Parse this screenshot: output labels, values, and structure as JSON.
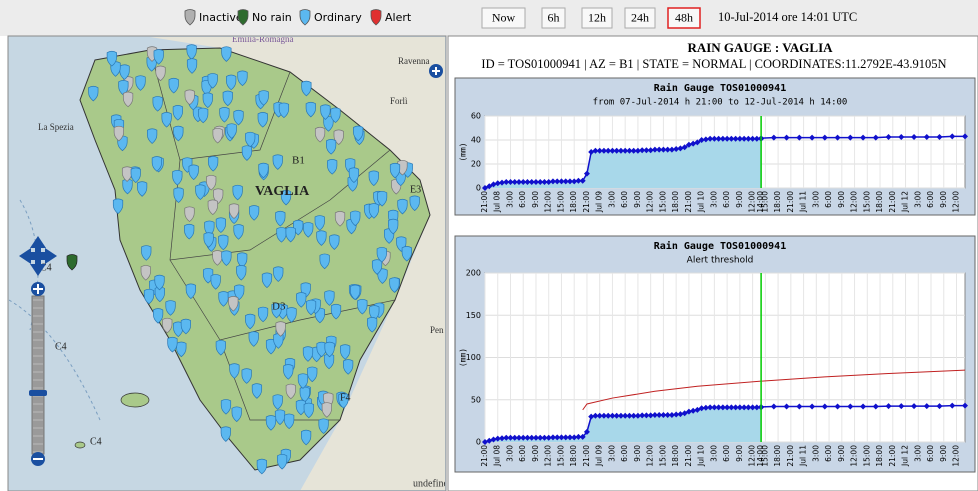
{
  "top_bar": {
    "legend": [
      "Inactive",
      "No rain",
      "Ordinary",
      "Alert"
    ],
    "legend_colors": [
      "#b0b0b0",
      "#2e6b2e",
      "#5bb8f0",
      "#e03030"
    ],
    "buttons": [
      "Now",
      "6h",
      "12h",
      "24h",
      "48h"
    ],
    "selected_button": 4,
    "timestamp": "10-Jul-2014 ore 14:01 UTC"
  },
  "map": {
    "labels": [
      "Emilia-Romagna",
      "Ravenna",
      "Forlì",
      "La Spezia",
      "B1",
      "VAGLIA",
      "E3",
      "D3",
      "Pen",
      "C4",
      "C4",
      "F4",
      "C4",
      "undefined"
    ]
  },
  "station": {
    "title": "RAIN GAUGE : VAGLIA",
    "info": "ID = TOS01000941 | AZ = B1 | STATE = NORMAL | COORDINATES:11.2792E-43.9105N"
  },
  "chart_data": [
    {
      "type": "line",
      "title": "Rain Gauge TOS01000941",
      "subtitle": "from 07-Jul-2014 h 21:00   to 12-Jul-2014 h 14:00",
      "y_label": "(mm)",
      "xlim": [
        0,
        113
      ],
      "ylim": [
        0,
        60
      ],
      "yticks": [
        0,
        20,
        40,
        60
      ],
      "grid": true,
      "now_x": 65,
      "now_color": "#00cc00",
      "xticks": [
        {
          "value": 0,
          "label": "21:00"
        },
        {
          "value": 3,
          "label": "Jul 08"
        },
        {
          "value": 6,
          "label": "3:00"
        },
        {
          "value": 9,
          "label": "6:00"
        },
        {
          "value": 12,
          "label": "9:00"
        },
        {
          "value": 15,
          "label": "12:00"
        },
        {
          "value": 18,
          "label": "15:00"
        },
        {
          "value": 21,
          "label": "18:00"
        },
        {
          "value": 24,
          "label": "21:00"
        },
        {
          "value": 27,
          "label": "Jul 09"
        },
        {
          "value": 30,
          "label": "3:00"
        },
        {
          "value": 33,
          "label": "6:00"
        },
        {
          "value": 36,
          "label": "9:00"
        },
        {
          "value": 39,
          "label": "12:00"
        },
        {
          "value": 42,
          "label": "15:00"
        },
        {
          "value": 45,
          "label": "18:00"
        },
        {
          "value": 48,
          "label": "21:00"
        },
        {
          "value": 51,
          "label": "Jul 10"
        },
        {
          "value": 54,
          "label": "3:00"
        },
        {
          "value": 57,
          "label": "6:00"
        },
        {
          "value": 60,
          "label": "9:00"
        },
        {
          "value": 63,
          "label": "12:00"
        },
        {
          "value": 65,
          "label": "14:00"
        },
        {
          "value": 66,
          "label": "15:00"
        },
        {
          "value": 69,
          "label": "18:00"
        },
        {
          "value": 72,
          "label": "21:00"
        },
        {
          "value": 75,
          "label": "Jul 11"
        },
        {
          "value": 78,
          "label": "3:00"
        },
        {
          "value": 81,
          "label": "6:00"
        },
        {
          "value": 84,
          "label": "9:00"
        },
        {
          "value": 87,
          "label": "12:00"
        },
        {
          "value": 90,
          "label": "15:00"
        },
        {
          "value": 93,
          "label": "18:00"
        },
        {
          "value": 96,
          "label": "21:00"
        },
        {
          "value": 99,
          "label": "Jul 12"
        },
        {
          "value": 102,
          "label": "3:00"
        },
        {
          "value": 105,
          "label": "6:00"
        },
        {
          "value": 108,
          "label": "9:00"
        },
        {
          "value": 111,
          "label": "12:00"
        }
      ],
      "series": [
        {
          "color": "#1010cc",
          "area_color": "#a8d8ea",
          "markers": true,
          "x": [
            0,
            1,
            2,
            3,
            4,
            5,
            6,
            7,
            8,
            9,
            10,
            11,
            12,
            13,
            14,
            15,
            16,
            17,
            18,
            19,
            20,
            21,
            22,
            23,
            24,
            25,
            26,
            27,
            28,
            29,
            30,
            31,
            32,
            33,
            34,
            35,
            36,
            37,
            38,
            39,
            40,
            41,
            42,
            43,
            44,
            45,
            46,
            47,
            48,
            49,
            50,
            51,
            52,
            53,
            54,
            55,
            56,
            57,
            58,
            59,
            60,
            61,
            62,
            63,
            64,
            65
          ],
          "values": [
            0,
            1.5,
            3,
            4,
            4.5,
            5,
            5,
            5,
            5,
            5,
            5,
            5,
            5,
            5,
            5,
            5,
            5.5,
            5.5,
            5.5,
            5.5,
            5.5,
            5.5,
            6,
            6,
            12,
            30,
            31,
            31,
            31,
            31,
            31,
            31,
            31,
            31,
            31,
            31,
            31,
            31.5,
            31.5,
            31.5,
            32,
            32,
            32,
            32,
            32,
            32.5,
            33,
            34,
            36,
            37,
            38,
            40,
            40.5,
            41,
            41,
            41,
            41,
            41,
            41,
            41,
            41,
            41,
            41,
            41,
            41,
            41
          ]
        },
        {
          "color": "#1010cc",
          "markers": true,
          "x": [
            65,
            68,
            71,
            74,
            77,
            80,
            83,
            86,
            89,
            92,
            95,
            98,
            101,
            104,
            107,
            110,
            113
          ],
          "values": [
            41.5,
            42,
            42,
            42,
            42,
            42,
            42,
            42,
            42,
            42,
            42.5,
            42.5,
            42.5,
            42.5,
            42.5,
            43,
            43
          ]
        }
      ]
    },
    {
      "type": "line",
      "title": "Rain Gauge TOS01000941",
      "subtitle": "Alert threshold",
      "y_label": "(mm)",
      "xlim": [
        0,
        113
      ],
      "ylim": [
        0,
        200
      ],
      "yticks": [
        0,
        50,
        100,
        150,
        200
      ],
      "grid": true,
      "now_x": 65,
      "now_color": "#00cc00",
      "xticks": [
        {
          "value": 0,
          "label": "21:00"
        },
        {
          "value": 3,
          "label": "Jul 08"
        },
        {
          "value": 6,
          "label": "3:00"
        },
        {
          "value": 9,
          "label": "6:00"
        },
        {
          "value": 12,
          "label": "9:00"
        },
        {
          "value": 15,
          "label": "12:00"
        },
        {
          "value": 18,
          "label": "15:00"
        },
        {
          "value": 21,
          "label": "18:00"
        },
        {
          "value": 24,
          "label": "21:00"
        },
        {
          "value": 27,
          "label": "Jul 09"
        },
        {
          "value": 30,
          "label": "3:00"
        },
        {
          "value": 33,
          "label": "6:00"
        },
        {
          "value": 36,
          "label": "9:00"
        },
        {
          "value": 39,
          "label": "12:00"
        },
        {
          "value": 42,
          "label": "15:00"
        },
        {
          "value": 45,
          "label": "18:00"
        },
        {
          "value": 48,
          "label": "21:00"
        },
        {
          "value": 51,
          "label": "Jul 10"
        },
        {
          "value": 54,
          "label": "3:00"
        },
        {
          "value": 57,
          "label": "6:00"
        },
        {
          "value": 60,
          "label": "9:00"
        },
        {
          "value": 63,
          "label": "12:00"
        },
        {
          "value": 65,
          "label": "14:00"
        },
        {
          "value": 66,
          "label": "15:00"
        },
        {
          "value": 69,
          "label": "18:00"
        },
        {
          "value": 72,
          "label": "21:00"
        },
        {
          "value": 75,
          "label": "Jul 11"
        },
        {
          "value": 78,
          "label": "3:00"
        },
        {
          "value": 81,
          "label": "6:00"
        },
        {
          "value": 84,
          "label": "9:00"
        },
        {
          "value": 87,
          "label": "12:00"
        },
        {
          "value": 90,
          "label": "15:00"
        },
        {
          "value": 93,
          "label": "18:00"
        },
        {
          "value": 96,
          "label": "21:00"
        },
        {
          "value": 99,
          "label": "Jul 12"
        },
        {
          "value": 102,
          "label": "3:00"
        },
        {
          "value": 105,
          "label": "6:00"
        },
        {
          "value": 108,
          "label": "9:00"
        },
        {
          "value": 111,
          "label": "12:00"
        }
      ],
      "series": [
        {
          "color": "#1010cc",
          "area_color": "#a8d8ea",
          "markers": true,
          "x": [
            0,
            1,
            2,
            3,
            4,
            5,
            6,
            7,
            8,
            9,
            10,
            11,
            12,
            13,
            14,
            15,
            16,
            17,
            18,
            19,
            20,
            21,
            22,
            23,
            24,
            25,
            26,
            27,
            28,
            29,
            30,
            31,
            32,
            33,
            34,
            35,
            36,
            37,
            38,
            39,
            40,
            41,
            42,
            43,
            44,
            45,
            46,
            47,
            48,
            49,
            50,
            51,
            52,
            53,
            54,
            55,
            56,
            57,
            58,
            59,
            60,
            61,
            62,
            63,
            64,
            65
          ],
          "values": [
            0,
            1.5,
            3,
            4,
            4.5,
            5,
            5,
            5,
            5,
            5,
            5,
            5,
            5,
            5,
            5,
            5,
            5.5,
            5.5,
            5.5,
            5.5,
            5.5,
            5.5,
            6,
            6,
            12,
            30,
            31,
            31,
            31,
            31,
            31,
            31,
            31,
            31,
            31,
            31,
            31,
            31.5,
            31.5,
            31.5,
            32,
            32,
            32,
            32,
            32,
            32.5,
            33,
            34,
            36,
            37,
            38,
            40,
            40.5,
            41,
            41,
            41,
            41,
            41,
            41,
            41,
            41,
            41,
            41,
            41,
            41,
            41
          ]
        },
        {
          "color": "#1010cc",
          "markers": true,
          "x": [
            65,
            68,
            71,
            74,
            77,
            80,
            83,
            86,
            89,
            92,
            95,
            98,
            101,
            104,
            107,
            110,
            113
          ],
          "values": [
            41.5,
            42,
            42,
            42,
            42,
            42,
            42,
            42,
            42,
            42,
            42.5,
            42.5,
            42.5,
            42.5,
            42.5,
            43,
            43
          ]
        },
        {
          "color": "#c02020",
          "markers": false,
          "x": [
            23,
            24,
            30,
            40,
            50,
            65,
            80,
            95,
            113
          ],
          "values": [
            38,
            45,
            52,
            60,
            66,
            72,
            77,
            81,
            85
          ]
        }
      ]
    }
  ]
}
